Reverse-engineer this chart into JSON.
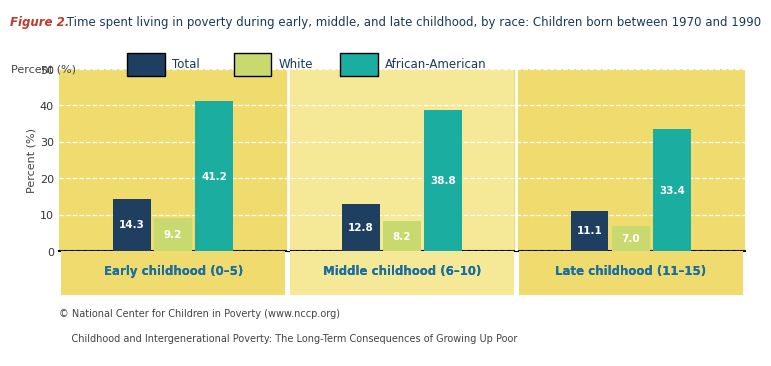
{
  "title_figure": "Figure 2.",
  "title_rest": " Time spent living in poverty during early, middle, and late childhood, by race: Children born between 1970 and 1990",
  "ylabel": "Percent (%)",
  "groups": [
    "Early childhood (0–5)",
    "Middle childhood (6–10)",
    "Late childhood (11–15)"
  ],
  "series": [
    "Total",
    "White",
    "African-American"
  ],
  "values": [
    [
      14.3,
      9.2,
      41.2
    ],
    [
      12.8,
      8.2,
      38.8
    ],
    [
      11.1,
      7.0,
      33.4
    ]
  ],
  "bar_colors": [
    "#1e3f60",
    "#c8d96f",
    "#1aada0"
  ],
  "bg_color_dark": "#f0dc6e",
  "bg_color_light": "#f5e896",
  "figure_bg": "#ffffff",
  "ylim": [
    0,
    50
  ],
  "yticks": [
    0,
    10,
    20,
    30,
    40,
    50
  ],
  "grid_color": "#ffffff",
  "title_color_fig": "#c0392b",
  "title_color_rest": "#1a3a5c",
  "xlabel_color": "#1a6fa0",
  "footnote1": "© National Center for Children in Poverty (www.nccp.org)",
  "footnote2": "    Childhood and Intergenerational Poverty: The Long-Term Consequences of Growing Up Poor",
  "bar_width": 0.18
}
